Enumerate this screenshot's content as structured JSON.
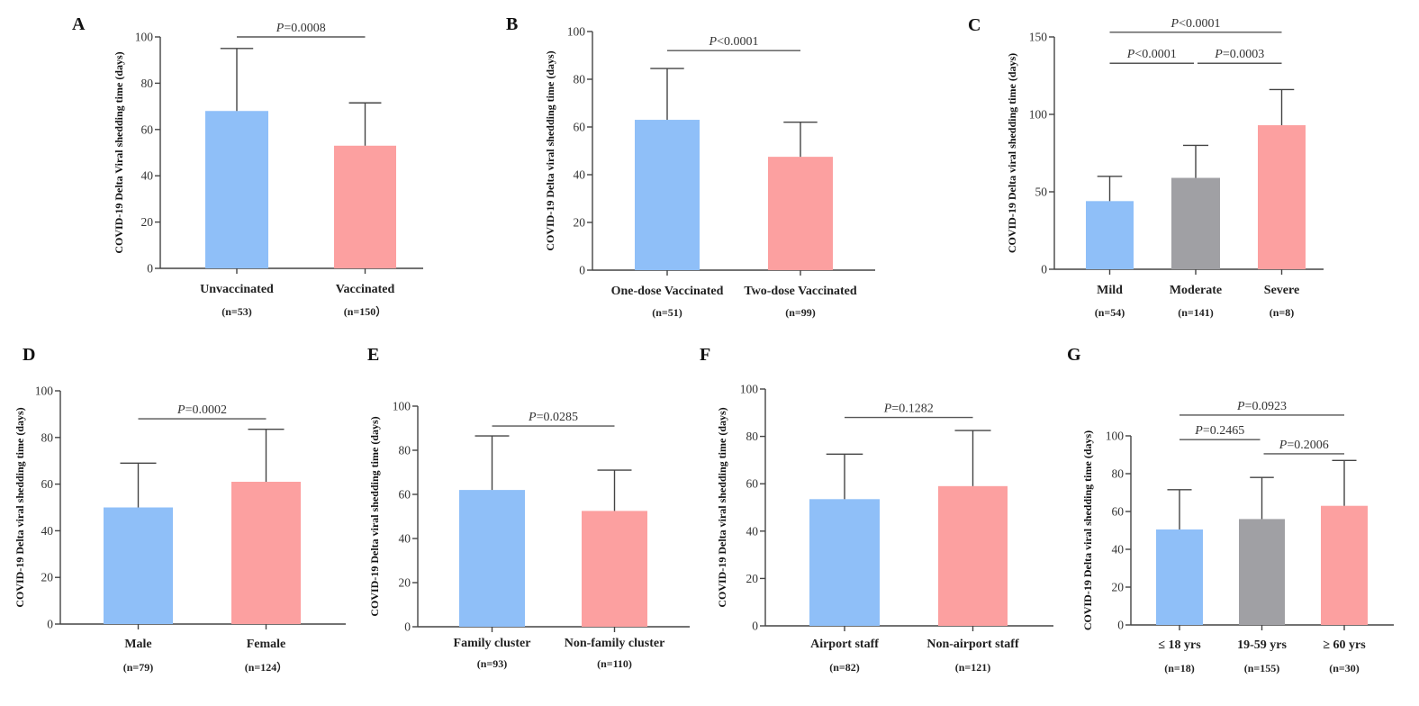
{
  "colors": {
    "blue": "#8fbff8",
    "gray": "#a0a0a4",
    "pink": "#fca0a0"
  },
  "chart_data": [
    {
      "panel": "A",
      "type": "bar",
      "ylabel": "COVID-19 Delta Viral shedding time  (days)",
      "ylim": [
        0,
        100
      ],
      "yticks": [
        0,
        20,
        40,
        60,
        80,
        100
      ],
      "categories": [
        "Unvaccinated",
        "Vaccinated"
      ],
      "n_labels": [
        "(n=53)",
        "(n=150）"
      ],
      "values": [
        68,
        53
      ],
      "error_upper": [
        95,
        71.5
      ],
      "bar_colors": [
        "blue",
        "pink"
      ],
      "comparisons": [
        {
          "from": 0,
          "to": 1,
          "label_prefix": "P",
          "label_rest": "=0.0008",
          "y": 100
        }
      ]
    },
    {
      "panel": "B",
      "type": "bar",
      "ylabel": "COVID-19 Delta viral shedding time (days)",
      "ylim": [
        0,
        100
      ],
      "yticks": [
        0,
        20,
        40,
        60,
        80,
        100
      ],
      "categories": [
        "One-dose Vaccinated",
        "Two-dose Vaccinated"
      ],
      "n_labels": [
        "(n=51)",
        "(n=99)"
      ],
      "values": [
        63,
        47.5
      ],
      "error_upper": [
        84.5,
        62
      ],
      "bar_colors": [
        "blue",
        "pink"
      ],
      "comparisons": [
        {
          "from": 0,
          "to": 1,
          "label_prefix": "P",
          "label_rest": "<0.0001",
          "y": 92
        }
      ]
    },
    {
      "panel": "C",
      "type": "bar",
      "ylabel": "COVID-19 Delta viral shedding time (days)",
      "ylim": [
        0,
        150
      ],
      "yticks": [
        0,
        50,
        100,
        150
      ],
      "categories": [
        "Mild",
        "Moderate",
        "Severe"
      ],
      "n_labels": [
        "(n=54)",
        "(n=141)",
        "(n=8)"
      ],
      "values": [
        44,
        59,
        93
      ],
      "error_upper": [
        60,
        80,
        116
      ],
      "bar_colors": [
        "blue",
        "gray",
        "pink"
      ],
      "comparisons": [
        {
          "from": 0,
          "to": 2,
          "label_prefix": "P",
          "label_rest": "<0.0001",
          "y": 153
        },
        {
          "from": 0,
          "to": 1,
          "label_prefix": "P",
          "label_rest": "<0.0001",
          "y": 133
        },
        {
          "from": 1,
          "to": 2,
          "label_prefix": "P",
          "label_rest": "=0.0003",
          "y": 133
        }
      ]
    },
    {
      "panel": "D",
      "type": "bar",
      "ylabel": "COVID-19 Delta viral shedding time (days)",
      "ylim": [
        0,
        100
      ],
      "yticks": [
        0,
        20,
        40,
        60,
        80,
        100
      ],
      "categories": [
        "Male",
        "Female"
      ],
      "n_labels": [
        "(n=79)",
        "(n=124）"
      ],
      "values": [
        50,
        61
      ],
      "error_upper": [
        69,
        83.5
      ],
      "bar_colors": [
        "blue",
        "pink"
      ],
      "comparisons": [
        {
          "from": 0,
          "to": 1,
          "label_prefix": "P",
          "label_rest": "=0.0002",
          "y": 88
        }
      ]
    },
    {
      "panel": "E",
      "type": "bar",
      "ylabel": "COVID-19 Delta viral shedding time (days)",
      "ylim": [
        0,
        100
      ],
      "yticks": [
        0,
        20,
        40,
        60,
        80,
        100
      ],
      "categories": [
        "Family cluster",
        "Non-family cluster"
      ],
      "n_labels": [
        "(n=93)",
        "(n=110)"
      ],
      "values": [
        62,
        52.5
      ],
      "error_upper": [
        86.5,
        71
      ],
      "bar_colors": [
        "blue",
        "pink"
      ],
      "comparisons": [
        {
          "from": 0,
          "to": 1,
          "label_prefix": "P",
          "label_rest": "=0.0285",
          "y": 91
        }
      ]
    },
    {
      "panel": "F",
      "type": "bar",
      "ylabel": "COVID-19 Delta viral shedding time (days)",
      "ylim": [
        0,
        100
      ],
      "yticks": [
        0,
        20,
        40,
        60,
        80,
        100
      ],
      "categories": [
        "Airport staff",
        "Non-airport staff"
      ],
      "n_labels": [
        "(n=82)",
        "(n=121)"
      ],
      "values": [
        53.5,
        59
      ],
      "error_upper": [
        72.5,
        82.5
      ],
      "bar_colors": [
        "blue",
        "pink"
      ],
      "comparisons": [
        {
          "from": 0,
          "to": 1,
          "label_prefix": "P",
          "label_rest": "=0.1282",
          "y": 88
        }
      ]
    },
    {
      "panel": "G",
      "type": "bar",
      "ylabel": "COVID-19 Delta viral shedding time (days)",
      "ylim": [
        0,
        100
      ],
      "yticks": [
        0,
        20,
        40,
        60,
        80,
        100
      ],
      "categories": [
        "≤ 18 yrs",
        "19-59 yrs",
        "≥ 60 yrs"
      ],
      "n_labels": [
        "(n=18)",
        "(n=155)",
        "(n=30)"
      ],
      "values": [
        50.5,
        56,
        63
      ],
      "error_upper": [
        71.5,
        78,
        87
      ],
      "bar_colors": [
        "blue",
        "gray",
        "pink"
      ],
      "comparisons": [
        {
          "from": 0,
          "to": 2,
          "label_prefix": "P",
          "label_rest": "=0.0923",
          "y": 111
        },
        {
          "from": 0,
          "to": 1,
          "label_prefix": "P",
          "label_rest": "=0.2465",
          "y": 98
        },
        {
          "from": 1,
          "to": 2,
          "label_prefix": "P",
          "label_rest": "=0.2006",
          "y": 90.5
        }
      ]
    }
  ]
}
